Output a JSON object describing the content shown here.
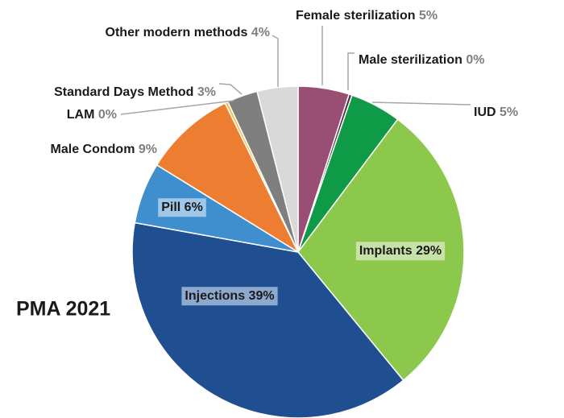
{
  "chart_data": {
    "type": "pie",
    "title": "PMA 2021",
    "categories": [
      "Female sterilization",
      "Male sterilization",
      "IUD",
      "Implants",
      "Injections",
      "Pill",
      "Male Condom",
      "LAM",
      "Standard Days Method",
      "Other modern methods"
    ],
    "values": [
      5,
      0.3,
      5,
      29,
      39,
      6,
      9,
      0.3,
      3,
      4
    ],
    "value_labels": [
      "5%",
      "0%",
      "5%",
      "29%",
      "39%",
      "6%",
      "9%",
      "0%",
      "3%",
      "4%"
    ],
    "colors": [
      "#984f73",
      "#5a2d44",
      "#0f9a48",
      "#8cc84b",
      "#1f4e91",
      "#3f8fcf",
      "#ed7d31",
      "#f2c14e",
      "#7f7f7f",
      "#d9d9d9"
    ]
  }
}
